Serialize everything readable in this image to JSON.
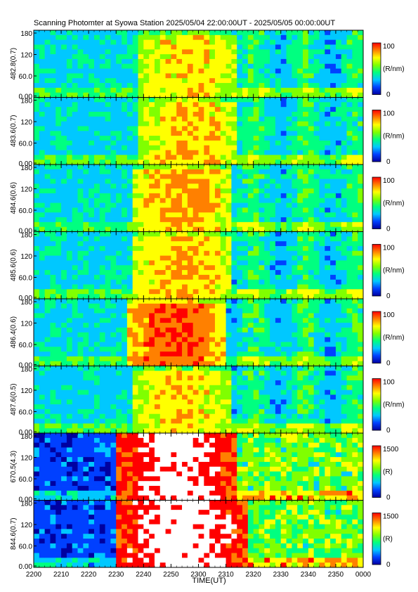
{
  "chart_data": {
    "type": "heatmap",
    "title": "Scanning Photomter at Syowa Station  2025/05/04 22:00:00UT - 2025/05/05 00:00:00UT",
    "xlabel": "TIME(UT)",
    "x_ticks": [
      "2200",
      "2210",
      "2220",
      "2230",
      "2240",
      "2250",
      "2300",
      "2310",
      "2320",
      "2330",
      "2340",
      "2350",
      "0000"
    ],
    "y_ticks": [
      "0.00",
      "60.0",
      "120",
      "180"
    ],
    "ylim": [
      0,
      180
    ],
    "colormap": [
      "#0000a0",
      "#0040ff",
      "#00c8ff",
      "#00ff80",
      "#80ff00",
      "#ffff00",
      "#ff8000",
      "#ff0000",
      "#ffffff"
    ],
    "panels": [
      {
        "ylabel": "482.8(0.7)",
        "cbar_max": "100",
        "cbar_min": "0",
        "cbar_unit": "(R/nm)",
        "onset_min": 38,
        "bright_end_min": 75,
        "intensity": 0.55
      },
      {
        "ylabel": "483.6(0.7)",
        "cbar_max": "100",
        "cbar_min": "0",
        "cbar_unit": "(R/nm)",
        "onset_min": 38,
        "bright_end_min": 75,
        "intensity": 0.58
      },
      {
        "ylabel": "484.6(0.6)",
        "cbar_max": "100",
        "cbar_min": "0",
        "cbar_unit": "(R/nm)",
        "onset_min": 36,
        "bright_end_min": 72,
        "intensity": 0.62
      },
      {
        "ylabel": "485.6(0.6)",
        "cbar_max": "100",
        "cbar_min": "0",
        "cbar_unit": "(R/nm)",
        "onset_min": 36,
        "bright_end_min": 72,
        "intensity": 0.6
      },
      {
        "ylabel": "486.4(0.6)",
        "cbar_max": "100",
        "cbar_min": "0",
        "cbar_unit": "(R/nm)",
        "onset_min": 34,
        "bright_end_min": 70,
        "intensity": 0.72
      },
      {
        "ylabel": "487.6(0.5)",
        "cbar_max": "100",
        "cbar_min": "0",
        "cbar_unit": "(R/nm)",
        "onset_min": 36,
        "bright_end_min": 72,
        "intensity": 0.56
      },
      {
        "ylabel": "670.5(4.3)",
        "cbar_max": "1500",
        "cbar_min": "0",
        "cbar_unit": "(R)",
        "onset_min": 30,
        "bright_end_min": 75,
        "intensity": 0.9
      },
      {
        "ylabel": "844.6(0.7)",
        "cbar_max": "1500",
        "cbar_min": "0",
        "cbar_unit": "(R)",
        "onset_min": 30,
        "bright_end_min": 78,
        "intensity": 0.92
      }
    ]
  }
}
